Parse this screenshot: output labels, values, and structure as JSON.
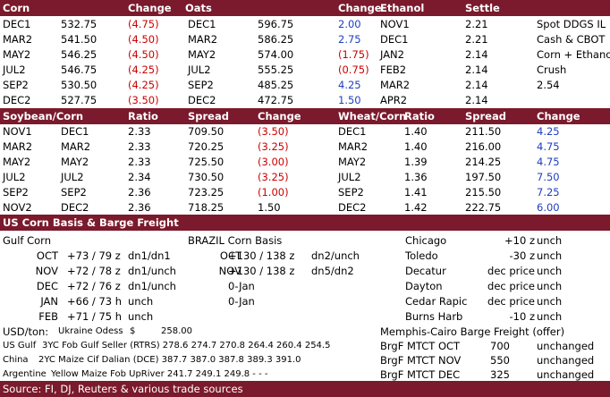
{
  "top": {
    "headers": {
      "corn": "Corn",
      "change": "Change",
      "oats": "Oats",
      "change2": "Change",
      "ethanol": "Ethanol",
      "settle": "Settle"
    },
    "corn": [
      {
        "m": "DEC1",
        "p": "532.75",
        "c": "(4.75)"
      },
      {
        "m": "MAR2",
        "p": "541.50",
        "c": "(4.50)"
      },
      {
        "m": "MAY2",
        "p": "546.25",
        "c": "(4.50)"
      },
      {
        "m": "JUL2",
        "p": "546.75",
        "c": "(4.25)"
      },
      {
        "m": "SEP2",
        "p": "530.50",
        "c": "(4.25)"
      },
      {
        "m": "DEC2",
        "p": "527.75",
        "c": "(3.50)"
      }
    ],
    "oats": [
      {
        "m": "DEC1",
        "p": "596.75",
        "c": "2.00",
        "col": "blue"
      },
      {
        "m": "MAR2",
        "p": "586.25",
        "c": "2.75",
        "col": "blue"
      },
      {
        "m": "MAY2",
        "p": "574.00",
        "c": "(1.75)",
        "col": "red"
      },
      {
        "m": "JUL2",
        "p": "555.25",
        "c": "(0.75)",
        "col": "red"
      },
      {
        "m": "SEP2",
        "p": "485.25",
        "c": "4.25",
        "col": "blue"
      },
      {
        "m": "DEC2",
        "p": "472.75",
        "c": "1.50",
        "col": "blue"
      }
    ],
    "ethanol": [
      {
        "m": "NOV1",
        "s": "2.21"
      },
      {
        "m": "DEC1",
        "s": "2.21"
      },
      {
        "m": "JAN2",
        "s": "2.14"
      },
      {
        "m": "FEB2",
        "s": "2.14"
      },
      {
        "m": "MAR2",
        "s": "2.14"
      },
      {
        "m": "APR2",
        "s": "2.14"
      }
    ],
    "ddgs": [
      "Spot DDGS IL",
      "Cash & CBOT",
      "Corn + Ethanol",
      "Crush",
      "2.54"
    ]
  },
  "spreads": {
    "headers": {
      "sc": "Soybean/Corn",
      "ratio": "Ratio",
      "spread": "Spread",
      "change": "Change",
      "wc": "Wheat/Corn",
      "ratio2": "Ratio",
      "spread2": "Spread",
      "change2": "Change"
    },
    "soy": [
      {
        "a": "NOV1",
        "b": "DEC1",
        "r": "2.33",
        "s": "709.50",
        "c": "(3.50)",
        "col": "red"
      },
      {
        "a": "MAR2",
        "b": "MAR2",
        "r": "2.33",
        "s": "720.25",
        "c": "(3.25)",
        "col": "red"
      },
      {
        "a": "MAY2",
        "b": "MAY2",
        "r": "2.33",
        "s": "725.50",
        "c": "(3.00)",
        "col": "red"
      },
      {
        "a": "JUL2",
        "b": "JUL2",
        "r": "2.34",
        "s": "730.50",
        "c": "(3.25)",
        "col": "red"
      },
      {
        "a": "SEP2",
        "b": "SEP2",
        "r": "2.36",
        "s": "723.25",
        "c": "(1.00)",
        "col": "red"
      },
      {
        "a": "NOV2",
        "b": "DEC2",
        "r": "2.36",
        "s": "718.25",
        "c": "1.50",
        "col": "black"
      }
    ],
    "wheat": [
      {
        "m": "DEC1",
        "r": "1.40",
        "s": "211.50",
        "c": "4.25"
      },
      {
        "m": "MAR2",
        "r": "1.40",
        "s": "216.00",
        "c": "4.75"
      },
      {
        "m": "MAY2",
        "r": "1.39",
        "s": "214.25",
        "c": "4.75"
      },
      {
        "m": "JUL2",
        "r": "1.36",
        "s": "197.50",
        "c": "7.50"
      },
      {
        "m": "SEP2",
        "r": "1.41",
        "s": "215.50",
        "c": "7.25"
      },
      {
        "m": "DEC2",
        "r": "1.42",
        "s": "222.75",
        "c": "6.00"
      }
    ]
  },
  "basis": {
    "title": "US Corn Basis & Barge Freight",
    "gulf_title": "Gulf Corn",
    "gulf": [
      {
        "m": "OCT",
        "v": "+73 / 79 z",
        "u": "dn1/dn1"
      },
      {
        "m": "NOV",
        "v": "+72 / 78 z",
        "u": "dn1/unch"
      },
      {
        "m": "DEC",
        "v": "+72 / 76 z",
        "u": "dn1/unch"
      },
      {
        "m": "JAN",
        "v": "+66 / 73 h",
        "u": "unch"
      },
      {
        "m": "FEB",
        "v": "+71 / 75 h",
        "u": "unch"
      }
    ],
    "brazil_title": "BRAZIL Corn Basis",
    "brazil": [
      {
        "m": "OCT",
        "v": "+130 / 138 z",
        "u": "dn2/unch"
      },
      {
        "m": "NOV",
        "v": "+130 / 138 z",
        "u": "dn5/dn2"
      },
      {
        "m": "",
        "v": "0-Jan",
        "u": ""
      },
      {
        "m": "",
        "v": "0-Jan",
        "u": ""
      }
    ],
    "cities": [
      {
        "c": "Chicago",
        "v": "+10 z",
        "u": "unch"
      },
      {
        "c": "Toledo",
        "v": "-30 z",
        "u": "unch"
      },
      {
        "c": "Decatur",
        "v": "dec price",
        "u": "unch"
      },
      {
        "c": "Dayton",
        "v": "dec price",
        "u": "unch"
      },
      {
        "c": "Cedar Rapic",
        "v": "dec price",
        "u": "unch"
      },
      {
        "c": "Burns Harb",
        "v": "-10 z",
        "u": "unch"
      }
    ]
  },
  "bottom": {
    "usd": "USD/ton:",
    "ukraine_label": "Ukraine Odess",
    "ukraine_cur": "$",
    "ukraine_val": "258.00",
    "memphis": "Memphis-Cairo Barge Freight (offer)",
    "origins": [
      {
        "o": "US Gulf",
        "d": "3YC Fob Gulf Seller (RTRS) 278.6 274.7 270.8 264.4 260.4 254.5"
      },
      {
        "o": "China",
        "d": "2YC Maize Cif Dalian (DCE) 387.7 387.0 387.8 389.3 391.0"
      },
      {
        "o": "Argentine",
        "d": "Yellow Maize Fob UpRiver  241.7 249.1 249.8   -     -     -"
      }
    ],
    "barge": [
      {
        "l": "BrgF MTCT OCT",
        "v": "700",
        "u": "unchanged"
      },
      {
        "l": "BrgF MTCT NOV",
        "v": "550",
        "u": "unchanged"
      },
      {
        "l": "BrgF MTCT DEC",
        "v": "325",
        "u": "unchanged"
      }
    ],
    "source": "Source: FI, DJ, Reuters & various trade sources"
  }
}
